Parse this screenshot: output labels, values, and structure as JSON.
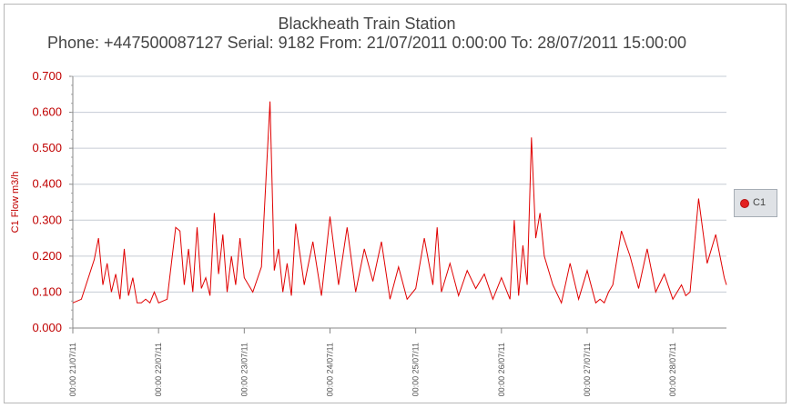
{
  "chart_data": {
    "type": "line",
    "title": "Blackheath Train Station",
    "subtitle": "Phone: +447500087127 Serial: 9182 From: 21/07/2011 0:00:00 To: 28/07/2011 15:00:00",
    "ylabel": "C1 Flow m3/h",
    "xlabel": "",
    "ylim": [
      0,
      0.7
    ],
    "yticks": [
      "0.000",
      "0.100",
      "0.200",
      "0.300",
      "0.400",
      "0.500",
      "0.600",
      "0.700"
    ],
    "xlim_days": [
      21.0,
      28.625
    ],
    "xticks": [
      "00:00 21/07/11",
      "00:00 22/07/11",
      "00:00 23/07/11",
      "00:00 24/07/11",
      "00:00 25/07/11",
      "00:00 26/07/11",
      "00:00 27/07/11",
      "00:00 28/07/11"
    ],
    "grid": true,
    "legend_position": "right",
    "series": [
      {
        "name": "C1",
        "color": "#e00000",
        "x_day_of_july": [
          21.0,
          21.1,
          21.25,
          21.3,
          21.35,
          21.4,
          21.45,
          21.5,
          21.55,
          21.6,
          21.65,
          21.7,
          21.75,
          21.8,
          21.85,
          21.9,
          21.95,
          22.0,
          22.1,
          22.2,
          22.25,
          22.3,
          22.35,
          22.4,
          22.45,
          22.5,
          22.55,
          22.6,
          22.65,
          22.7,
          22.75,
          22.8,
          22.85,
          22.9,
          22.95,
          23.0,
          23.1,
          23.2,
          23.3,
          23.35,
          23.4,
          23.45,
          23.5,
          23.55,
          23.6,
          23.7,
          23.8,
          23.9,
          24.0,
          24.1,
          24.2,
          24.3,
          24.4,
          24.5,
          24.6,
          24.7,
          24.8,
          24.9,
          25.0,
          25.1,
          25.2,
          25.25,
          25.3,
          25.4,
          25.5,
          25.6,
          25.7,
          25.8,
          25.9,
          26.0,
          26.1,
          26.15,
          26.2,
          26.25,
          26.3,
          26.35,
          26.4,
          26.45,
          26.5,
          26.6,
          26.7,
          26.8,
          26.9,
          27.0,
          27.1,
          27.15,
          27.2,
          27.25,
          27.3,
          27.4,
          27.5,
          27.6,
          27.7,
          27.8,
          27.9,
          28.0,
          28.1,
          28.15,
          28.2,
          28.3,
          28.4,
          28.5,
          28.6,
          28.625
        ],
        "values": [
          0.07,
          0.08,
          0.19,
          0.25,
          0.12,
          0.18,
          0.1,
          0.15,
          0.08,
          0.22,
          0.09,
          0.14,
          0.07,
          0.07,
          0.08,
          0.07,
          0.1,
          0.07,
          0.08,
          0.28,
          0.27,
          0.12,
          0.22,
          0.1,
          0.28,
          0.11,
          0.14,
          0.09,
          0.32,
          0.15,
          0.26,
          0.1,
          0.2,
          0.12,
          0.25,
          0.14,
          0.1,
          0.17,
          0.63,
          0.16,
          0.22,
          0.1,
          0.18,
          0.09,
          0.29,
          0.12,
          0.24,
          0.09,
          0.31,
          0.12,
          0.28,
          0.1,
          0.22,
          0.13,
          0.24,
          0.08,
          0.17,
          0.08,
          0.11,
          0.25,
          0.12,
          0.28,
          0.1,
          0.18,
          0.09,
          0.16,
          0.11,
          0.15,
          0.08,
          0.14,
          0.08,
          0.3,
          0.09,
          0.23,
          0.12,
          0.53,
          0.25,
          0.32,
          0.2,
          0.12,
          0.07,
          0.18,
          0.08,
          0.16,
          0.07,
          0.08,
          0.07,
          0.1,
          0.12,
          0.27,
          0.2,
          0.11,
          0.22,
          0.1,
          0.15,
          0.08,
          0.12,
          0.09,
          0.1,
          0.36,
          0.18,
          0.26,
          0.14,
          0.12
        ]
      }
    ]
  }
}
